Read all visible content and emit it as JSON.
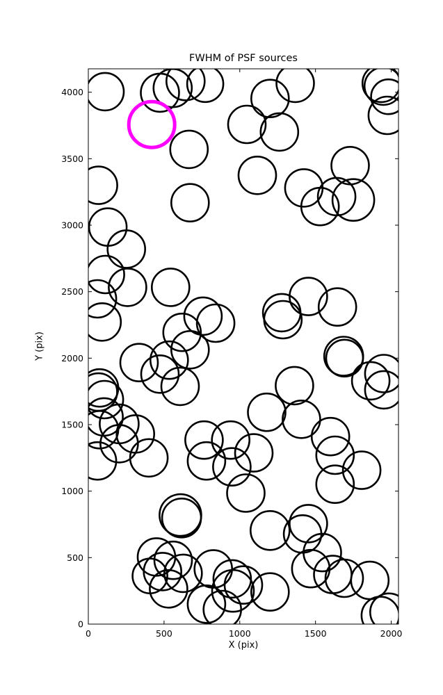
{
  "figure": {
    "background": "#ffffff",
    "frame_color": "#000000"
  },
  "chart_data": {
    "type": "scatter",
    "title": "FWHM of PSF sources",
    "xlabel": "X (pix)",
    "ylabel": "Y (pix)",
    "xlim": [
      0,
      2048
    ],
    "ylim": [
      0,
      4176
    ],
    "xticks": [
      0,
      500,
      1000,
      1500,
      2000
    ],
    "yticks": [
      0,
      500,
      1000,
      1500,
      2000,
      2500,
      3000,
      3500,
      4000
    ],
    "grid": false,
    "legend": "none",
    "marker_style": "open-circle",
    "series": [
      {
        "name": "psf-sources",
        "color": "#000000",
        "linewidth": 2.6,
        "points": [
          [
            110,
            4004,
            27
          ],
          [
            473,
            3996,
            27.5
          ],
          [
            557,
            4031,
            27.5
          ],
          [
            642,
            4083,
            27.5
          ],
          [
            772,
            4062,
            26
          ],
          [
            1200,
            3953,
            27
          ],
          [
            1366,
            4067,
            27
          ],
          [
            1934,
            4067,
            27
          ],
          [
            1948,
            4046,
            27
          ],
          [
            1982,
            3966,
            25
          ],
          [
            1974,
            3826,
            27
          ],
          [
            1047,
            3758,
            27
          ],
          [
            1262,
            3701,
            27
          ],
          [
            665,
            3570,
            27
          ],
          [
            1116,
            3375,
            27
          ],
          [
            1423,
            3280,
            27
          ],
          [
            1530,
            3140,
            27
          ],
          [
            1640,
            3215,
            27
          ],
          [
            1750,
            3190,
            30
          ],
          [
            1729,
            3448,
            27
          ],
          [
            672,
            3169,
            27
          ],
          [
            67,
            3300,
            27
          ],
          [
            129,
            2986,
            27
          ],
          [
            251,
            2820,
            27
          ],
          [
            113,
            2629,
            27
          ],
          [
            259,
            2533,
            27
          ],
          [
            60,
            2446,
            27
          ],
          [
            91,
            2272,
            27
          ],
          [
            543,
            2533,
            27
          ],
          [
            757,
            2316,
            27
          ],
          [
            841,
            2263,
            27
          ],
          [
            619,
            2194,
            27
          ],
          [
            672,
            2063,
            27
          ],
          [
            534,
            1985,
            27
          ],
          [
            473,
            1880,
            27
          ],
          [
            606,
            1788,
            27
          ],
          [
            335,
            1967,
            27
          ],
          [
            1453,
            2464,
            27
          ],
          [
            1277,
            2342,
            27
          ],
          [
            1285,
            2289,
            27
          ],
          [
            1645,
            2385,
            27
          ],
          [
            1686,
            2015,
            28
          ],
          [
            1692,
            2000,
            26.5
          ],
          [
            1865,
            1830,
            27
          ],
          [
            1951,
            1884,
            27
          ],
          [
            1951,
            1762,
            27
          ],
          [
            1361,
            1793,
            27
          ],
          [
            1178,
            1593,
            27
          ],
          [
            1407,
            1540,
            27
          ],
          [
            1599,
            1410,
            27
          ],
          [
            74,
            1776,
            27
          ],
          [
            66,
            1745,
            27
          ],
          [
            106,
            1688,
            27
          ],
          [
            104,
            1558,
            27
          ],
          [
            204,
            1506,
            28
          ],
          [
            74,
            1462,
            27
          ],
          [
            311,
            1430,
            27
          ],
          [
            204,
            1357,
            27
          ],
          [
            60,
            1227,
            27
          ],
          [
            400,
            1250,
            27
          ],
          [
            764,
            1384,
            27
          ],
          [
            780,
            1227,
            27
          ],
          [
            940,
            1384,
            27
          ],
          [
            948,
            1183,
            27
          ],
          [
            1093,
            1288,
            27
          ],
          [
            1040,
            985,
            27
          ],
          [
            1629,
            1270,
            27
          ],
          [
            1629,
            1052,
            27
          ],
          [
            1805,
            1157,
            27
          ],
          [
            1453,
            756,
            27
          ],
          [
            1415,
            678,
            27
          ],
          [
            1545,
            538,
            27
          ],
          [
            1469,
            417,
            27
          ],
          [
            1614,
            373,
            27
          ],
          [
            1690,
            345,
            27
          ],
          [
            1200,
            704,
            28
          ],
          [
            1859,
            329,
            27
          ],
          [
            1024,
            294,
            27
          ],
          [
            1200,
            242,
            27
          ],
          [
            608,
            820,
            30
          ],
          [
            616,
            798,
            28
          ],
          [
            450,
            505,
            27
          ],
          [
            560,
            480,
            27
          ],
          [
            490,
            395,
            27
          ],
          [
            407,
            362,
            25
          ],
          [
            530,
            265,
            27
          ],
          [
            626,
            382,
            27
          ],
          [
            825,
            415,
            27
          ],
          [
            950,
            340,
            27
          ],
          [
            780,
            150,
            27
          ],
          [
            885,
            110,
            27
          ],
          [
            955,
            250,
            30
          ],
          [
            1928,
            65,
            27
          ],
          [
            1985,
            90,
            27
          ]
        ]
      },
      {
        "name": "highlighted-source",
        "color": "#ff00ff",
        "linewidth": 5,
        "points": [
          [
            419,
            3757,
            33
          ]
        ]
      }
    ]
  }
}
